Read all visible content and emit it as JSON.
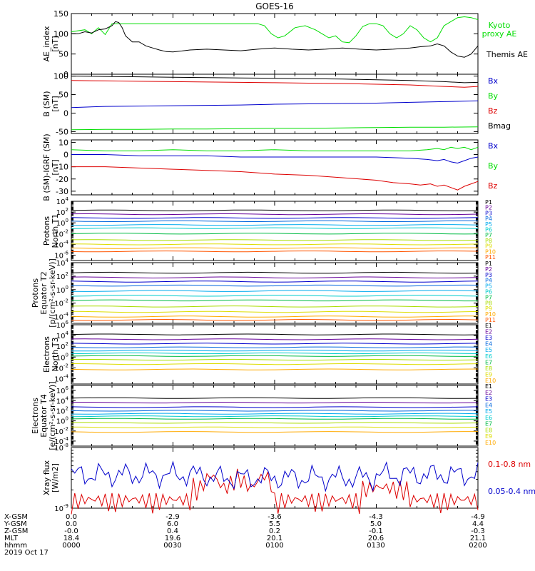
{
  "title": "GOES-16",
  "date_label": "2019 Oct 17",
  "ephemeris": {
    "x_gsm": [
      "0.0",
      "-2.9",
      "-3.6",
      "-4.3",
      "-4.9"
    ],
    "y_gsm": [
      "0.0",
      "6.0",
      "5.5",
      "5.0",
      "4.4"
    ],
    "z_gsm": [
      "-0.0",
      "0.4",
      "0.2",
      "-0.1",
      "-0.3"
    ],
    "mlt": [
      "18.4",
      "19.6",
      "20.1",
      "20.6",
      "21.1"
    ],
    "hhmm": [
      "0000",
      "0030",
      "0100",
      "0130",
      "0200"
    ]
  },
  "row_labels": [
    "X-GSM",
    "Y-GSM",
    "Z-GSM",
    "MLT",
    "hhmm"
  ],
  "colors": {
    "black": "#000000",
    "green": "#00dd00",
    "blue": "#0000cc",
    "red": "#dd0000",
    "p_colors": [
      "#000000",
      "#660099",
      "#0000cc",
      "#0066dd",
      "#00aaee",
      "#00cccc",
      "#00bb44",
      "#aadd00",
      "#dddd00",
      "#ffaa00",
      "#ff5500",
      "#cc0000",
      "#990000"
    ]
  },
  "chart_data": [
    {
      "type": "line",
      "ylabel": [
        "AE_index",
        "[nT]"
      ],
      "ylim": [
        0,
        150
      ],
      "yticks": [
        0,
        50,
        100,
        150
      ],
      "xlim": [
        0,
        120
      ],
      "series": [
        {
          "name": "Kyoto proxy AE",
          "label_lines": [
            "Kyoto",
            "proxy AE"
          ],
          "color": "#00dd00",
          "x": [
            0,
            4,
            6,
            8,
            10,
            12,
            13,
            15,
            17,
            19,
            20,
            24,
            30,
            40,
            50,
            55,
            57,
            59,
            61,
            63,
            66,
            69,
            72,
            74,
            76,
            78,
            80,
            82,
            84,
            86,
            88,
            90,
            92,
            94,
            96,
            98,
            100,
            102,
            104,
            106,
            108,
            110,
            112,
            114,
            116,
            118,
            120
          ],
          "y": [
            105,
            110,
            100,
            115,
            98,
            125,
            125,
            125,
            125,
            125,
            125,
            125,
            125,
            125,
            125,
            125,
            120,
            100,
            90,
            95,
            115,
            120,
            110,
            100,
            90,
            95,
            80,
            78,
            95,
            118,
            125,
            125,
            120,
            100,
            90,
            100,
            120,
            110,
            90,
            80,
            90,
            120,
            130,
            140,
            142,
            140,
            135
          ]
        },
        {
          "name": "Themis AE",
          "label_lines": [
            "Themis AE"
          ],
          "color": "#000000",
          "x": [
            0,
            2,
            4,
            6,
            8,
            10,
            12,
            13,
            14,
            15,
            16,
            18,
            20,
            22,
            24,
            26,
            28,
            30,
            35,
            40,
            45,
            50,
            55,
            60,
            65,
            70,
            75,
            80,
            85,
            90,
            95,
            100,
            103,
            106,
            108,
            110,
            112,
            114,
            116,
            118,
            120
          ],
          "y": [
            100,
            100,
            105,
            102,
            110,
            112,
            120,
            130,
            128,
            115,
            95,
            80,
            80,
            70,
            65,
            60,
            56,
            55,
            60,
            62,
            60,
            58,
            62,
            65,
            62,
            60,
            62,
            65,
            62,
            60,
            62,
            65,
            68,
            70,
            75,
            70,
            55,
            45,
            42,
            50,
            70
          ]
        }
      ]
    },
    {
      "type": "line",
      "ylabel": [
        "B (SM)",
        "[nT]"
      ],
      "ylim": [
        -55,
        105
      ],
      "yticks": [
        -50,
        0,
        50,
        100
      ],
      "xlim": [
        0,
        120
      ],
      "series": [
        {
          "name": "Bx",
          "color": "#0000cc",
          "x": [
            0,
            10,
            20,
            30,
            40,
            50,
            60,
            70,
            80,
            90,
            100,
            110,
            120
          ],
          "y": [
            15,
            18,
            19,
            20,
            21,
            22,
            24,
            25,
            26,
            27,
            29,
            31,
            33
          ]
        },
        {
          "name": "By",
          "color": "#00dd00",
          "x": [
            0,
            10,
            20,
            30,
            40,
            50,
            60,
            70,
            80,
            90,
            100,
            110,
            120
          ],
          "y": [
            -45,
            -44,
            -44,
            -43,
            -43,
            -42,
            -41,
            -41,
            -40,
            -39,
            -38,
            -38,
            -37
          ]
        },
        {
          "name": "Bz",
          "color": "#dd0000",
          "x": [
            0,
            10,
            20,
            30,
            40,
            50,
            60,
            70,
            80,
            90,
            100,
            110,
            116,
            120
          ],
          "y": [
            88,
            87,
            86,
            85,
            84,
            83,
            82,
            81,
            80,
            78,
            76,
            72,
            70,
            72
          ]
        },
        {
          "name": "Bmag",
          "color": "#000000",
          "x": [
            0,
            10,
            20,
            30,
            40,
            50,
            60,
            70,
            80,
            90,
            100,
            110,
            116,
            120
          ],
          "y": [
            100,
            99,
            98,
            97,
            96,
            95,
            94,
            93,
            92,
            90,
            88,
            85,
            82,
            83
          ]
        }
      ]
    },
    {
      "type": "line",
      "ylabel": [
        "B (SM)-IGRF (SM)",
        "[nT]"
      ],
      "ylim": [
        -33,
        12
      ],
      "yticks": [
        -30,
        -20,
        -10,
        0,
        10
      ],
      "xlim": [
        0,
        120
      ],
      "series": [
        {
          "name": "Bx",
          "color": "#0000cc",
          "x": [
            0,
            10,
            20,
            30,
            40,
            50,
            60,
            70,
            80,
            90,
            100,
            105,
            108,
            110,
            112,
            114,
            116,
            118,
            120
          ],
          "y": [
            0,
            0,
            -1,
            -1,
            -1,
            -2,
            -2,
            -2,
            -2,
            -2,
            -3,
            -4,
            -5,
            -4,
            -6,
            -7,
            -5,
            -3,
            -2
          ]
        },
        {
          "name": "By",
          "color": "#00dd00",
          "x": [
            0,
            10,
            20,
            30,
            40,
            50,
            60,
            70,
            80,
            90,
            100,
            105,
            108,
            110,
            112,
            114,
            116,
            118,
            120
          ],
          "y": [
            4,
            3,
            3,
            4,
            3,
            3,
            4,
            3,
            3,
            3,
            3,
            4,
            5,
            4,
            6,
            5,
            6,
            4,
            6
          ]
        },
        {
          "name": "Bz",
          "color": "#dd0000",
          "x": [
            0,
            10,
            20,
            30,
            40,
            50,
            60,
            70,
            80,
            90,
            95,
            100,
            103,
            106,
            108,
            110,
            112,
            114,
            116,
            118,
            120
          ],
          "y": [
            -10,
            -10,
            -11,
            -12,
            -13,
            -14,
            -16,
            -17,
            -19,
            -21,
            -23,
            -24,
            -25,
            -24,
            -26,
            -25,
            -27,
            -29,
            -26,
            -24,
            -22
          ]
        }
      ]
    },
    {
      "type": "line",
      "ylabel": [
        "Protons",
        "North T1"
      ],
      "yscale": "log",
      "ylim_exp": [
        -7,
        4
      ],
      "ytick_exps": [
        -6,
        -4,
        -2,
        0,
        2,
        4
      ],
      "xlim": [
        0,
        120
      ],
      "legend": [
        "P1",
        "P2",
        "P3",
        "P4",
        "P5",
        "P6",
        "P7",
        "P8",
        "P9",
        "P10",
        "P11"
      ],
      "level_exps": [
        2.3,
        1.6,
        0.9,
        0.3,
        -0.4,
        -1,
        -2,
        -3.2,
        -4,
        -4.7,
        -5.3
      ],
      "y_tick_label_prefix": "10"
    },
    {
      "type": "line",
      "ylabel": [
        "Protons",
        "Equator T2",
        "[p/(cm²-s-sr-keV)]"
      ],
      "yscale": "log",
      "ylim_exp": [
        -5,
        4
      ],
      "ytick_exps": [
        -4,
        -2,
        0,
        2,
        4
      ],
      "xlim": [
        0,
        120
      ],
      "legend": [
        "P1",
        "P2",
        "P3",
        "P4",
        "P5",
        "P6",
        "P7",
        "P8",
        "P9",
        "P10",
        "P11"
      ],
      "level_exps": [
        2.5,
        1.8,
        1.2,
        0.6,
        -0.2,
        -0.9,
        -1.6,
        -2.5,
        -3.3,
        -4,
        -4.5
      ]
    },
    {
      "type": "line",
      "ylabel": [
        "Electrons",
        "North T3"
      ],
      "yscale": "log",
      "ylim_exp": [
        -5,
        6
      ],
      "ytick_exps": [
        -4,
        -2,
        0,
        2,
        4,
        6
      ],
      "xlim": [
        0,
        120
      ],
      "legend": [
        "E1",
        "E2",
        "E3",
        "E4",
        "E5",
        "E6",
        "E7",
        "E8",
        "E9",
        "E10"
      ],
      "level_exps": [
        4.2,
        3.3,
        2.5,
        1.8,
        1.2,
        0.7,
        0.2,
        -0.5,
        -1.3,
        -2.3
      ]
    },
    {
      "type": "line",
      "ylabel": [
        "Electrons",
        "Equator T4",
        "[e/(cm²-s-sr-keV)]"
      ],
      "yscale": "log",
      "ylim_exp": [
        -5,
        7
      ],
      "ytick_exps": [
        -4,
        -2,
        0,
        2,
        4,
        6
      ],
      "xlim": [
        0,
        120
      ],
      "legend": [
        "E1",
        "E2",
        "E3",
        "E4",
        "E5",
        "E6",
        "E7",
        "E8",
        "E9",
        "E10"
      ],
      "level_exps": [
        4.5,
        3.6,
        2.7,
        2.0,
        1.4,
        0.9,
        0.4,
        -0.4,
        -1.3,
        -2.2
      ]
    },
    {
      "type": "line",
      "ylabel": [
        "Xray flux",
        "[W/m2]"
      ],
      "yscale": "log",
      "ylim_exp": [
        -9,
        -8
      ],
      "ytick_exps": [
        -9,
        -8
      ],
      "xlim": [
        0,
        120
      ],
      "series": [
        {
          "name": "0.1-0.8 nm",
          "color": "#dd0000"
        },
        {
          "name": "0.05-0.4 nm",
          "color": "#0000cc"
        }
      ]
    }
  ]
}
